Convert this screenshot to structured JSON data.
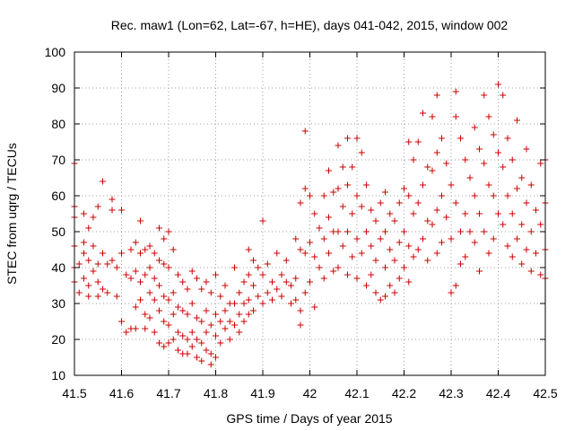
{
  "chart_data": {
    "type": "scatter",
    "title": "Rec. maw1 (Lon=62, Lat=-67, h=HE), days 041-042, 2015, window 002",
    "xlabel": "GPS time / Days of year 2015",
    "ylabel": "STEC from uqrg / TECUs",
    "xlim": [
      41.5,
      42.5
    ],
    "ylim": [
      10,
      100
    ],
    "xticks": [
      "41.5",
      "41.6",
      "41.7",
      "41.8",
      "41.9",
      "42",
      "42.1",
      "42.2",
      "42.3",
      "42.4",
      "42.5"
    ],
    "yticks": [
      "10",
      "20",
      "30",
      "40",
      "50",
      "60",
      "70",
      "80",
      "90",
      "100"
    ],
    "grid": true,
    "marker": "+",
    "color": "#cc0000",
    "points": [
      [
        41.5,
        69
      ],
      [
        41.5,
        57
      ],
      [
        41.5,
        54
      ],
      [
        41.5,
        46
      ],
      [
        41.5,
        40
      ],
      [
        41.5,
        36
      ],
      [
        41.51,
        41
      ],
      [
        41.51,
        33
      ],
      [
        41.52,
        55
      ],
      [
        41.52,
        47
      ],
      [
        41.52,
        44
      ],
      [
        41.52,
        37
      ],
      [
        41.53,
        51
      ],
      [
        41.53,
        42
      ],
      [
        41.53,
        35
      ],
      [
        41.53,
        32
      ],
      [
        41.54,
        54
      ],
      [
        41.54,
        46
      ],
      [
        41.54,
        39
      ],
      [
        41.55,
        57
      ],
      [
        41.55,
        41
      ],
      [
        41.55,
        36
      ],
      [
        41.55,
        32
      ],
      [
        41.56,
        64
      ],
      [
        41.56,
        44
      ],
      [
        41.56,
        34
      ],
      [
        41.57,
        41
      ],
      [
        41.57,
        33
      ],
      [
        41.58,
        59
      ],
      [
        41.58,
        56
      ],
      [
        41.58,
        42
      ],
      [
        41.59,
        40
      ],
      [
        41.59,
        32
      ],
      [
        41.6,
        56
      ],
      [
        41.6,
        44
      ],
      [
        41.6,
        25
      ],
      [
        41.61,
        38
      ],
      [
        41.61,
        22
      ],
      [
        41.62,
        45
      ],
      [
        41.62,
        37
      ],
      [
        41.62,
        23
      ],
      [
        41.63,
        47
      ],
      [
        41.63,
        39
      ],
      [
        41.63,
        29
      ],
      [
        41.63,
        23
      ],
      [
        41.64,
        53
      ],
      [
        41.64,
        44
      ],
      [
        41.64,
        36
      ],
      [
        41.64,
        31
      ],
      [
        41.65,
        45
      ],
      [
        41.65,
        38
      ],
      [
        41.65,
        27
      ],
      [
        41.65,
        23
      ],
      [
        41.66,
        46
      ],
      [
        41.66,
        40
      ],
      [
        41.66,
        33
      ],
      [
        41.66,
        26
      ],
      [
        41.67,
        44
      ],
      [
        41.67,
        37
      ],
      [
        41.67,
        31
      ],
      [
        41.67,
        22
      ],
      [
        41.68,
        51
      ],
      [
        41.68,
        42
      ],
      [
        41.68,
        35
      ],
      [
        41.68,
        28
      ],
      [
        41.68,
        19
      ],
      [
        41.69,
        48
      ],
      [
        41.69,
        41
      ],
      [
        41.69,
        32
      ],
      [
        41.69,
        25
      ],
      [
        41.69,
        18
      ],
      [
        41.7,
        50
      ],
      [
        41.7,
        40
      ],
      [
        41.7,
        31
      ],
      [
        41.7,
        24
      ],
      [
        41.7,
        19
      ],
      [
        41.71,
        45
      ],
      [
        41.71,
        33
      ],
      [
        41.71,
        27
      ],
      [
        41.71,
        20
      ],
      [
        41.72,
        38
      ],
      [
        41.72,
        29
      ],
      [
        41.72,
        22
      ],
      [
        41.72,
        17
      ],
      [
        41.73,
        36
      ],
      [
        41.73,
        28
      ],
      [
        41.73,
        21
      ],
      [
        41.73,
        16
      ],
      [
        41.74,
        34
      ],
      [
        41.74,
        27
      ],
      [
        41.74,
        20
      ],
      [
        41.74,
        16
      ],
      [
        41.75,
        39
      ],
      [
        41.75,
        30
      ],
      [
        41.75,
        22
      ],
      [
        41.75,
        18
      ],
      [
        41.76,
        37
      ],
      [
        41.76,
        26
      ],
      [
        41.76,
        20
      ],
      [
        41.76,
        15
      ],
      [
        41.77,
        34
      ],
      [
        41.77,
        25
      ],
      [
        41.77,
        19
      ],
      [
        41.77,
        14
      ],
      [
        41.78,
        36
      ],
      [
        41.78,
        28
      ],
      [
        41.78,
        22
      ],
      [
        41.78,
        17
      ],
      [
        41.79,
        33
      ],
      [
        41.79,
        24
      ],
      [
        41.79,
        16
      ],
      [
        41.79,
        13
      ],
      [
        41.8,
        38
      ],
      [
        41.8,
        27
      ],
      [
        41.8,
        21
      ],
      [
        41.8,
        15
      ],
      [
        41.81,
        32
      ],
      [
        41.81,
        25
      ],
      [
        41.81,
        19
      ],
      [
        41.82,
        35
      ],
      [
        41.82,
        28
      ],
      [
        41.82,
        23
      ],
      [
        41.83,
        30
      ],
      [
        41.83,
        25
      ],
      [
        41.83,
        20
      ],
      [
        41.84,
        40
      ],
      [
        41.84,
        30
      ],
      [
        41.84,
        24
      ],
      [
        41.85,
        33
      ],
      [
        41.85,
        27
      ],
      [
        41.85,
        22
      ],
      [
        41.86,
        36
      ],
      [
        41.86,
        30
      ],
      [
        41.86,
        25
      ],
      [
        41.87,
        45
      ],
      [
        41.87,
        38
      ],
      [
        41.87,
        31
      ],
      [
        41.87,
        27
      ],
      [
        41.88,
        42
      ],
      [
        41.88,
        35
      ],
      [
        41.88,
        28
      ],
      [
        41.89,
        40
      ],
      [
        41.89,
        32
      ],
      [
        41.9,
        53
      ],
      [
        41.9,
        38
      ],
      [
        41.9,
        30
      ],
      [
        41.91,
        41
      ],
      [
        41.91,
        33
      ],
      [
        41.92,
        36
      ],
      [
        41.92,
        31
      ],
      [
        41.93,
        44
      ],
      [
        41.93,
        34
      ],
      [
        41.94,
        38
      ],
      [
        41.94,
        32
      ],
      [
        41.95,
        42
      ],
      [
        41.95,
        36
      ],
      [
        41.96,
        35
      ],
      [
        41.96,
        30
      ],
      [
        41.97,
        48
      ],
      [
        41.97,
        37
      ],
      [
        41.97,
        31
      ],
      [
        41.98,
        58
      ],
      [
        41.98,
        45
      ],
      [
        41.98,
        28
      ],
      [
        41.98,
        24
      ],
      [
        41.99,
        78
      ],
      [
        41.99,
        62
      ],
      [
        41.99,
        44
      ],
      [
        41.99,
        33
      ],
      [
        42.0,
        60
      ],
      [
        42.0,
        47
      ],
      [
        42.0,
        36
      ],
      [
        42.01,
        55
      ],
      [
        42.01,
        43
      ],
      [
        42.01,
        29
      ],
      [
        42.02,
        51
      ],
      [
        42.02,
        40
      ],
      [
        42.03,
        60
      ],
      [
        42.03,
        48
      ],
      [
        42.03,
        37
      ],
      [
        42.04,
        67
      ],
      [
        42.04,
        54
      ],
      [
        42.04,
        44
      ],
      [
        42.05,
        61
      ],
      [
        42.05,
        50
      ],
      [
        42.05,
        39
      ],
      [
        42.06,
        74
      ],
      [
        42.06,
        62
      ],
      [
        42.06,
        50
      ],
      [
        42.06,
        40
      ],
      [
        42.07,
        68
      ],
      [
        42.07,
        57
      ],
      [
        42.07,
        46
      ],
      [
        42.08,
        76
      ],
      [
        42.08,
        63
      ],
      [
        42.08,
        50
      ],
      [
        42.08,
        38
      ],
      [
        42.09,
        68
      ],
      [
        42.09,
        55
      ],
      [
        42.09,
        43
      ],
      [
        42.1,
        76
      ],
      [
        42.1,
        60
      ],
      [
        42.1,
        48
      ],
      [
        42.1,
        37
      ],
      [
        42.11,
        72
      ],
      [
        42.11,
        57
      ],
      [
        42.11,
        44
      ],
      [
        42.12,
        63
      ],
      [
        42.12,
        50
      ],
      [
        42.12,
        35
      ],
      [
        42.13,
        56
      ],
      [
        42.13,
        46
      ],
      [
        42.13,
        38
      ],
      [
        42.14,
        53
      ],
      [
        42.14,
        42
      ],
      [
        42.14,
        33
      ],
      [
        42.15,
        58
      ],
      [
        42.15,
        48
      ],
      [
        42.15,
        31
      ],
      [
        42.16,
        61
      ],
      [
        42.16,
        50
      ],
      [
        42.16,
        40
      ],
      [
        42.16,
        32
      ],
      [
        42.17,
        55
      ],
      [
        42.17,
        45
      ],
      [
        42.17,
        35
      ],
      [
        42.18,
        53
      ],
      [
        42.18,
        42
      ],
      [
        42.18,
        33
      ],
      [
        42.19,
        58
      ],
      [
        42.19,
        47
      ],
      [
        42.19,
        37
      ],
      [
        42.2,
        62
      ],
      [
        42.2,
        50
      ],
      [
        42.2,
        40
      ],
      [
        42.21,
        75
      ],
      [
        42.21,
        60
      ],
      [
        42.21,
        46
      ],
      [
        42.21,
        36
      ],
      [
        42.22,
        70
      ],
      [
        42.22,
        55
      ],
      [
        42.22,
        43
      ],
      [
        42.23,
        75
      ],
      [
        42.23,
        58
      ],
      [
        42.23,
        45
      ],
      [
        42.24,
        83
      ],
      [
        42.24,
        63
      ],
      [
        42.24,
        48
      ],
      [
        42.25,
        68
      ],
      [
        42.25,
        53
      ],
      [
        42.25,
        42
      ],
      [
        42.26,
        82
      ],
      [
        42.26,
        67
      ],
      [
        42.26,
        52
      ],
      [
        42.27,
        88
      ],
      [
        42.27,
        72
      ],
      [
        42.27,
        56
      ],
      [
        42.27,
        44
      ],
      [
        42.28,
        76
      ],
      [
        42.28,
        60
      ],
      [
        42.28,
        47
      ],
      [
        42.29,
        69
      ],
      [
        42.29,
        54
      ],
      [
        42.3,
        63
      ],
      [
        42.3,
        48
      ],
      [
        42.3,
        33
      ],
      [
        42.31,
        89
      ],
      [
        42.31,
        82
      ],
      [
        42.31,
        58
      ],
      [
        42.31,
        35
      ],
      [
        42.32,
        76
      ],
      [
        42.32,
        50
      ],
      [
        42.32,
        41
      ],
      [
        42.33,
        70
      ],
      [
        42.33,
        55
      ],
      [
        42.33,
        43
      ],
      [
        42.34,
        65
      ],
      [
        42.34,
        50
      ],
      [
        42.35,
        79
      ],
      [
        42.35,
        60
      ],
      [
        42.35,
        47
      ],
      [
        42.36,
        73
      ],
      [
        42.36,
        55
      ],
      [
        42.36,
        39
      ],
      [
        42.37,
        88
      ],
      [
        42.37,
        69
      ],
      [
        42.37,
        50
      ],
      [
        42.38,
        82
      ],
      [
        42.38,
        63
      ],
      [
        42.38,
        44
      ],
      [
        42.39,
        77
      ],
      [
        42.39,
        60
      ],
      [
        42.39,
        48
      ],
      [
        42.4,
        91
      ],
      [
        42.4,
        72
      ],
      [
        42.4,
        55
      ],
      [
        42.41,
        88
      ],
      [
        42.41,
        68
      ],
      [
        42.41,
        52
      ],
      [
        42.42,
        76
      ],
      [
        42.42,
        60
      ],
      [
        42.42,
        46
      ],
      [
        42.43,
        70
      ],
      [
        42.43,
        55
      ],
      [
        42.43,
        43
      ],
      [
        42.44,
        81
      ],
      [
        42.44,
        62
      ],
      [
        42.44,
        48
      ],
      [
        42.45,
        65
      ],
      [
        42.45,
        52
      ],
      [
        42.45,
        41
      ],
      [
        42.46,
        73
      ],
      [
        42.46,
        58
      ],
      [
        42.46,
        45
      ],
      [
        42.47,
        63
      ],
      [
        42.47,
        50
      ],
      [
        42.47,
        39
      ],
      [
        42.48,
        56
      ],
      [
        42.48,
        44
      ],
      [
        42.49,
        69
      ],
      [
        42.49,
        52
      ],
      [
        42.49,
        38
      ],
      [
        42.5,
        70
      ],
      [
        42.5,
        58
      ],
      [
        42.5,
        45
      ],
      [
        42.5,
        37
      ]
    ]
  }
}
